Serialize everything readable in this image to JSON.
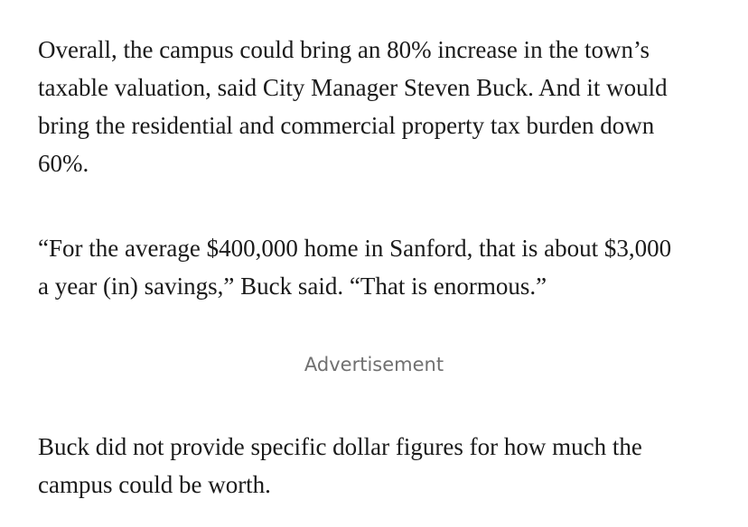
{
  "article": {
    "paragraph1": [
      "Overall, the campus could bring an 80% increase in the town’s",
      "taxable valuation, said City Manager Steven Buck. And it would",
      "bring the residential and commercial property tax burden down",
      "60%."
    ],
    "paragraph2": [
      "“For the average $400,000 home in Sanford, that is about $3,000",
      "a year (in) savings,” Buck said. “That is enormous.”"
    ],
    "advertisement_label": "Advertisement",
    "paragraph3": [
      "Buck did not provide specific dollar figures for how much the",
      "campus could be worth."
    ]
  }
}
